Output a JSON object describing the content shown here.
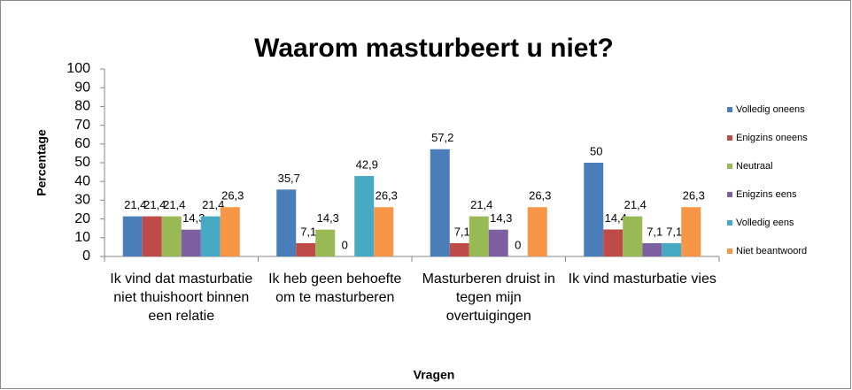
{
  "chart_data": {
    "type": "bar",
    "title": "Waarom masturbeert u niet?",
    "x_label": "Vragen",
    "y_label": "Percentage",
    "categories": [
      "Ik vind dat masturbatie niet thuishoort binnen een relatie",
      "Ik heb geen behoefte om te masturberen",
      "Masturberen druist in tegen mijn overtuigingen",
      "Ik vind masturbatie vies"
    ],
    "series": [
      {
        "name": "Volledig oneens",
        "color": "#4a7ebb",
        "values": [
          21.4,
          35.7,
          57.2,
          50
        ],
        "value_labels": [
          "21,4",
          "35,7",
          "57,2",
          "50"
        ]
      },
      {
        "name": "Enigzins oneens",
        "color": "#be4b48",
        "values": [
          21.4,
          7.1,
          7.1,
          14.4
        ],
        "value_labels": [
          "21,4",
          "7,1",
          "7,1",
          "14,4"
        ]
      },
      {
        "name": "Neutraal",
        "color": "#98b954",
        "values": [
          21.4,
          14.3,
          21.4,
          21.4
        ],
        "value_labels": [
          "21,4",
          "14,3",
          "21,4",
          "21,4"
        ]
      },
      {
        "name": "Enigzins eens",
        "color": "#7d60a0",
        "values": [
          14.3,
          0,
          14.3,
          7.1
        ],
        "value_labels": [
          "14,3",
          "0",
          "14,3",
          "7,1"
        ]
      },
      {
        "name": "Volledig eens",
        "color": "#46aac5",
        "values": [
          21.4,
          42.9,
          0,
          7.1
        ],
        "value_labels": [
          "21,4",
          "42,9",
          "0",
          "7,1"
        ]
      },
      {
        "name": "Niet beantwoord",
        "color": "#f79646",
        "values": [
          26.3,
          26.3,
          26.3,
          26.3
        ],
        "value_labels": [
          "26,3",
          "26,3",
          "26,3",
          "26,3"
        ]
      }
    ],
    "ylim": [
      0,
      100
    ],
    "yticks": [
      0,
      10,
      20,
      30,
      40,
      50,
      60,
      70,
      80,
      90,
      100
    ],
    "grid": false,
    "legend": "right"
  }
}
